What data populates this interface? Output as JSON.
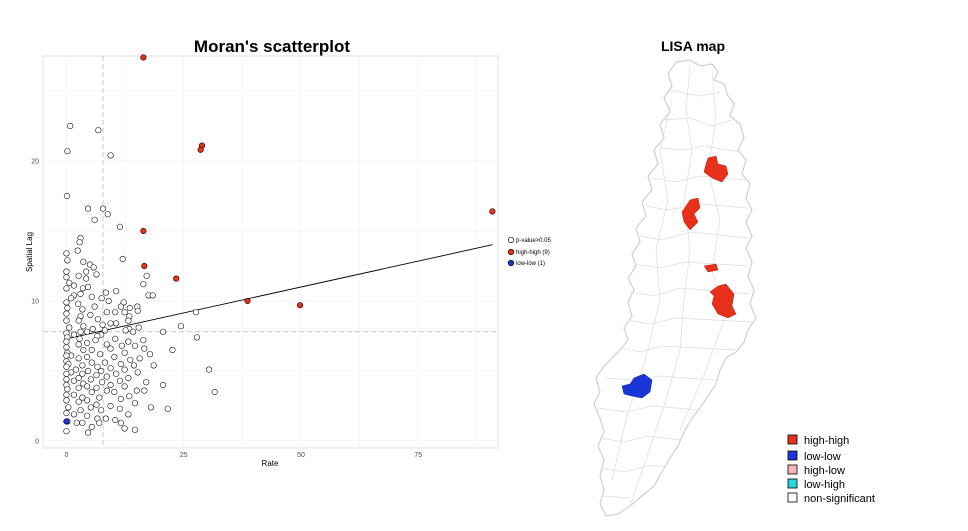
{
  "chart_data": [
    {
      "type": "scatter",
      "title": "Moran's scatterplot",
      "xlabel": "Rate",
      "ylabel": "Spatial Lag",
      "xlim": [
        -5,
        92
      ],
      "ylim": [
        -0.5,
        27.5
      ],
      "xticks": [
        0,
        25,
        50,
        75
      ],
      "yticks": [
        0,
        10,
        20
      ],
      "mean_x": 7.8,
      "mean_y": 7.8,
      "regression": {
        "intercept": 7.3,
        "slope": 0.074
      },
      "grid": true,
      "legend_position": "right",
      "series": [
        {
          "name": "p-value>0.05",
          "fill": "#ffffff",
          "points": [
            [
              0.8,
              22.5
            ],
            [
              6.8,
              22.2
            ],
            [
              9.4,
              20.4
            ],
            [
              0.2,
              20.7
            ],
            [
              0.1,
              17.5
            ],
            [
              4.6,
              16.6
            ],
            [
              7.8,
              16.6
            ],
            [
              8.8,
              16.2
            ],
            [
              6.0,
              15.8
            ],
            [
              11.4,
              15.3
            ],
            [
              3.0,
              14.5
            ],
            [
              2.8,
              14.2
            ],
            [
              2.4,
              13.6
            ],
            [
              0.0,
              13.4
            ],
            [
              0.2,
              12.9
            ],
            [
              12.0,
              13.0
            ],
            [
              3.6,
              12.8
            ],
            [
              5.0,
              12.6
            ],
            [
              5.8,
              12.4
            ],
            [
              4.2,
              12.1
            ],
            [
              0.0,
              12.1
            ],
            [
              6.4,
              11.9
            ],
            [
              2.6,
              11.8
            ],
            [
              17.1,
              11.8
            ],
            [
              4.2,
              11.6
            ],
            [
              0.0,
              11.7
            ],
            [
              0.6,
              11.3
            ],
            [
              1.6,
              11.1
            ],
            [
              4.6,
              11.0
            ],
            [
              0.0,
              10.9
            ],
            [
              16.4,
              11.2
            ],
            [
              3.5,
              10.9
            ],
            [
              8.4,
              10.6
            ],
            [
              3.0,
              10.5
            ],
            [
              10.6,
              10.7
            ],
            [
              1.6,
              10.4
            ],
            [
              17.5,
              10.4
            ],
            [
              5.4,
              10.3
            ],
            [
              1.0,
              10.2
            ],
            [
              7.5,
              10.2
            ],
            [
              18.4,
              10.4
            ],
            [
              9.0,
              10.0
            ],
            [
              0.0,
              9.9
            ],
            [
              2.5,
              9.8
            ],
            [
              12.2,
              9.9
            ],
            [
              11.6,
              9.6
            ],
            [
              6.0,
              9.6
            ],
            [
              0.2,
              9.5
            ],
            [
              15.1,
              9.6
            ],
            [
              13.5,
              9.5
            ],
            [
              3.4,
              9.4
            ],
            [
              12.4,
              9.2
            ],
            [
              8.6,
              9.2
            ],
            [
              10.4,
              9.2
            ],
            [
              15.2,
              9.3
            ],
            [
              0.0,
              9.1
            ],
            [
              5.1,
              9.0
            ],
            [
              27.6,
              9.2
            ],
            [
              3.0,
              8.9
            ],
            [
              13.4,
              8.9
            ],
            [
              6.7,
              8.7
            ],
            [
              2.6,
              8.6
            ],
            [
              0.0,
              8.6
            ],
            [
              13.2,
              8.6
            ],
            [
              9.4,
              8.4
            ],
            [
              10.6,
              8.4
            ],
            [
              7.7,
              8.3
            ],
            [
              3.6,
              8.2
            ],
            [
              15.4,
              8.1
            ],
            [
              24.4,
              8.2
            ],
            [
              0.6,
              8.1
            ],
            [
              13.4,
              8.0
            ],
            [
              5.6,
              8.0
            ],
            [
              8.2,
              7.9
            ],
            [
              12.6,
              7.9
            ],
            [
              14.2,
              7.8
            ],
            [
              4.4,
              7.8
            ],
            [
              3.0,
              7.8
            ],
            [
              20.6,
              7.8
            ],
            [
              0.0,
              7.7
            ],
            [
              7.4,
              7.6
            ],
            [
              1.6,
              7.6
            ],
            [
              6.6,
              7.5
            ],
            [
              0.2,
              7.4
            ],
            [
              2.8,
              7.3
            ],
            [
              27.8,
              7.4
            ],
            [
              10.4,
              7.3
            ],
            [
              16.4,
              7.2
            ],
            [
              6.2,
              7.2
            ],
            [
              0.0,
              7.1
            ],
            [
              13.2,
              7.1
            ],
            [
              4.4,
              7.0
            ],
            [
              8.6,
              6.9
            ],
            [
              2.6,
              6.9
            ],
            [
              14.6,
              6.8
            ],
            [
              11.8,
              6.8
            ],
            [
              16.6,
              6.6
            ],
            [
              0.0,
              6.7
            ],
            [
              9.4,
              6.6
            ],
            [
              5.4,
              6.5
            ],
            [
              3.6,
              6.5
            ],
            [
              22.6,
              6.5
            ],
            [
              0.2,
              6.3
            ],
            [
              12.4,
              6.3
            ],
            [
              7.2,
              6.2
            ],
            [
              1.0,
              6.1
            ],
            [
              17.8,
              6.2
            ],
            [
              0.0,
              6.1
            ],
            [
              4.4,
              6.0
            ],
            [
              10.2,
              6.0
            ],
            [
              15.6,
              5.9
            ],
            [
              2.6,
              5.9
            ],
            [
              13.6,
              5.8
            ],
            [
              0.0,
              5.7
            ],
            [
              8.2,
              5.6
            ],
            [
              5.4,
              5.6
            ],
            [
              11.6,
              5.5
            ],
            [
              0.4,
              5.5
            ],
            [
              3.4,
              5.4
            ],
            [
              14.4,
              5.4
            ],
            [
              18.6,
              5.4
            ],
            [
              6.6,
              5.3
            ],
            [
              0.0,
              5.3
            ],
            [
              9.4,
              5.2
            ],
            [
              2.0,
              5.1
            ],
            [
              30.4,
              5.1
            ],
            [
              12.4,
              5.1
            ],
            [
              4.6,
              5.0
            ],
            [
              7.4,
              5.0
            ],
            [
              15.2,
              4.9
            ],
            [
              1.0,
              4.9
            ],
            [
              3.4,
              4.8
            ],
            [
              0.0,
              4.8
            ],
            [
              10.6,
              4.8
            ],
            [
              6.4,
              4.7
            ],
            [
              8.6,
              4.6
            ],
            [
              2.6,
              4.5
            ],
            [
              13.2,
              4.5
            ],
            [
              0.0,
              4.4
            ],
            [
              5.2,
              4.4
            ],
            [
              1.6,
              4.3
            ],
            [
              11.4,
              4.3
            ],
            [
              7.6,
              4.2
            ],
            [
              17.0,
              4.2
            ],
            [
              3.6,
              4.1
            ],
            [
              0.0,
              4.0
            ],
            [
              9.4,
              4.0
            ],
            [
              20.6,
              4.0
            ],
            [
              4.4,
              3.9
            ],
            [
              12.4,
              3.9
            ],
            [
              2.6,
              3.8
            ],
            [
              6.4,
              3.8
            ],
            [
              0.2,
              3.7
            ],
            [
              15.0,
              3.6
            ],
            [
              8.6,
              3.6
            ],
            [
              16.6,
              3.6
            ],
            [
              10.2,
              3.5
            ],
            [
              5.4,
              3.5
            ],
            [
              31.6,
              3.5
            ],
            [
              1.6,
              3.3
            ],
            [
              0.0,
              3.3
            ],
            [
              13.4,
              3.2
            ],
            [
              3.4,
              3.1
            ],
            [
              7.0,
              3.1
            ],
            [
              11.6,
              3.0
            ],
            [
              4.4,
              2.9
            ],
            [
              0.0,
              2.9
            ],
            [
              2.6,
              2.8
            ],
            [
              14.6,
              2.7
            ],
            [
              6.4,
              2.6
            ],
            [
              9.4,
              2.5
            ],
            [
              0.4,
              2.4
            ],
            [
              5.2,
              2.4
            ],
            [
              18.0,
              2.4
            ],
            [
              11.4,
              2.3
            ],
            [
              21.6,
              2.3
            ],
            [
              3.0,
              2.2
            ],
            [
              7.4,
              2.2
            ],
            [
              0.0,
              2.0
            ],
            [
              1.6,
              1.9
            ],
            [
              13.2,
              1.9
            ],
            [
              4.4,
              1.8
            ],
            [
              6.6,
              1.6
            ],
            [
              8.4,
              1.6
            ],
            [
              10.4,
              1.5
            ],
            [
              0.2,
              1.4
            ],
            [
              3.4,
              1.3
            ],
            [
              2.2,
              1.3
            ],
            [
              11.6,
              1.3
            ],
            [
              7.0,
              1.3
            ],
            [
              5.4,
              1.0
            ],
            [
              12.4,
              0.9
            ],
            [
              14.6,
              0.8
            ],
            [
              0.0,
              0.7
            ],
            [
              4.6,
              0.6
            ]
          ]
        },
        {
          "name": "high-high (9)",
          "fill": "#e8311a",
          "points": [
            [
              16.4,
              27.4
            ],
            [
              28.9,
              21.1
            ],
            [
              28.6,
              20.8
            ],
            [
              16.4,
              15.0
            ],
            [
              16.6,
              12.5
            ],
            [
              23.4,
              11.6
            ],
            [
              38.6,
              10.0
            ],
            [
              49.8,
              9.7
            ],
            [
              90.8,
              16.4
            ]
          ]
        },
        {
          "name": "low-low (1)",
          "fill": "#1a35d8",
          "points": [
            [
              0.0,
              1.4
            ]
          ]
        }
      ]
    },
    {
      "type": "map",
      "title": "LISA map",
      "legend": [
        {
          "label": "high-high",
          "color": "#e8311a"
        },
        {
          "label": "low-low",
          "color": "#1a35d8"
        },
        {
          "label": "high-low",
          "color": "#f2b8b8"
        },
        {
          "label": "low-high",
          "color": "#27d8e0"
        },
        {
          "label": "non-significant",
          "color": "#ffffff"
        }
      ]
    }
  ]
}
